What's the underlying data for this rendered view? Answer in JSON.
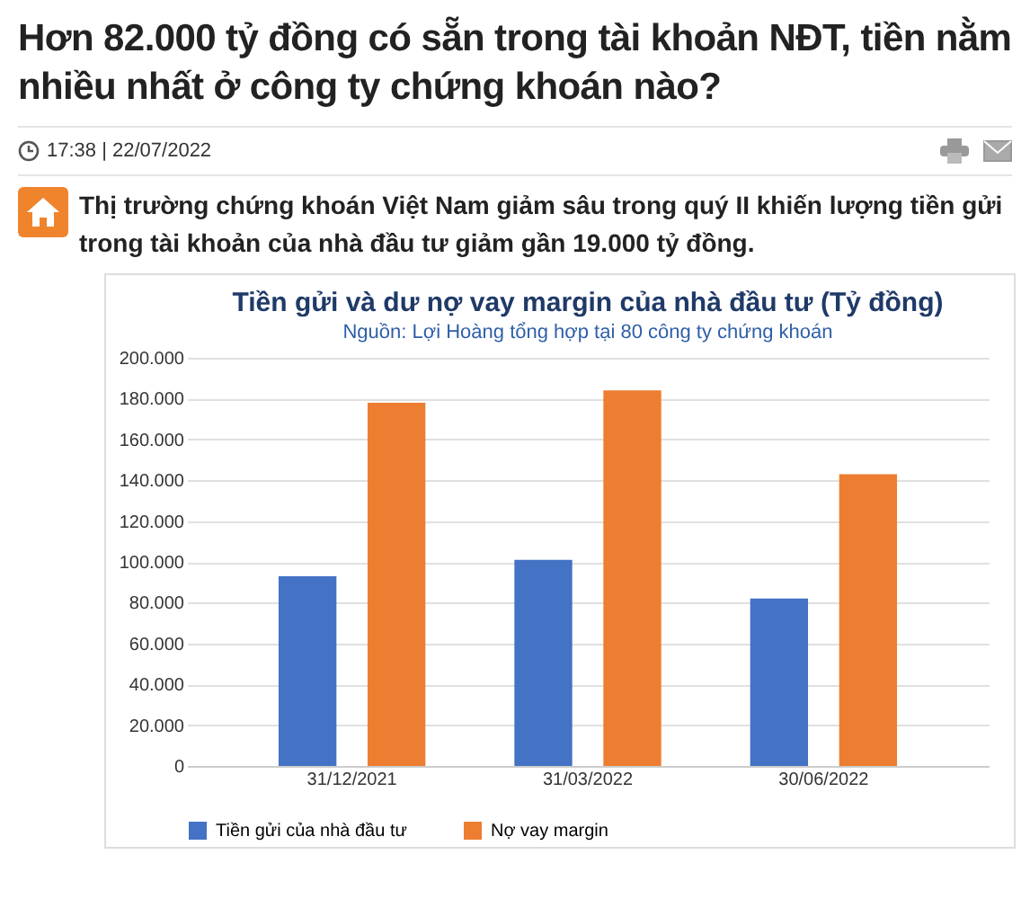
{
  "chart_data": {
    "type": "bar",
    "title": "Tiền gửi và dư nợ vay margin của nhà đầu tư (Tỷ đồng)",
    "subtitle": "Nguồn: Lợi Hoàng tổng hợp tại 80 công ty chứng khoán",
    "annotations": [
      "Hơn 82.000 tỷ đồng có sẵn trong tài khoản NĐT, tiền nằm nhiều nhất ở công ty chứng khoán nào?",
      "17:38 | 22/07/2022",
      "Thị trường chứng khoán Việt Nam giảm sâu trong quý II khiến lượng tiền gửi trong tài khoản của nhà đầu tư giảm gần 19.000 tỷ đồng."
    ],
    "categories": [
      "31/12/2021",
      "31/03/2022",
      "30/06/2022"
    ],
    "series": [
      {
        "name": "Tiền gửi của nhà đầu tư",
        "color": "#4472c4",
        "values": [
          93000,
          101000,
          82000
        ]
      },
      {
        "name": "Nợ vay margin",
        "color": "#ed7d31",
        "values": [
          178000,
          184000,
          143000
        ]
      }
    ],
    "ylim": [
      0,
      200000
    ],
    "yticks": [
      {
        "value": 0,
        "label": "0"
      },
      {
        "value": 20000,
        "label": "20.000"
      },
      {
        "value": 40000,
        "label": "40.000"
      },
      {
        "value": 60000,
        "label": "60.000"
      },
      {
        "value": 80000,
        "label": "80.000"
      },
      {
        "value": 100000,
        "label": "100.000"
      },
      {
        "value": 120000,
        "label": "120.000"
      },
      {
        "value": 140000,
        "label": "140.000"
      },
      {
        "value": 160000,
        "label": "160.000"
      },
      {
        "value": 180000,
        "label": "180.000"
      },
      {
        "value": 200000,
        "label": "200.000"
      }
    ],
    "grid": "y",
    "legend": "bottom"
  }
}
